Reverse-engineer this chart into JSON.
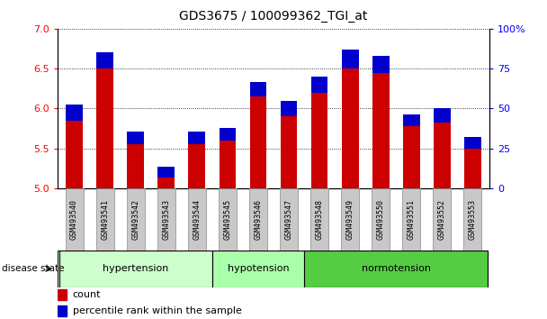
{
  "title": "GDS3675 / 100099362_TGI_at",
  "samples": [
    "GSM493540",
    "GSM493541",
    "GSM493542",
    "GSM493543",
    "GSM493544",
    "GSM493545",
    "GSM493546",
    "GSM493547",
    "GSM493548",
    "GSM493549",
    "GSM493550",
    "GSM493551",
    "GSM493552",
    "GSM493553"
  ],
  "red_values": [
    5.85,
    6.5,
    5.55,
    5.13,
    5.55,
    5.6,
    6.15,
    5.9,
    6.2,
    6.5,
    6.44,
    5.78,
    5.82,
    5.5
  ],
  "blue_values_pct": [
    10,
    10,
    8,
    7,
    8,
    8,
    9,
    10,
    10,
    12,
    11,
    7,
    9,
    7
  ],
  "ylim_left": [
    5.0,
    7.0
  ],
  "ylim_right": [
    0,
    100
  ],
  "yticks_left": [
    5.0,
    5.5,
    6.0,
    6.5,
    7.0
  ],
  "yticks_right": [
    0,
    25,
    50,
    75,
    100
  ],
  "ytick_labels_right": [
    "0",
    "25",
    "50",
    "75",
    "100%"
  ],
  "bar_bottom": 5.0,
  "groups": [
    {
      "label": "hypertension",
      "start": 0,
      "end": 4
    },
    {
      "label": "hypotension",
      "start": 5,
      "end": 7
    },
    {
      "label": "normotension",
      "start": 8,
      "end": 13
    }
  ],
  "group_colors": [
    "#ccffcc",
    "#aaffaa",
    "#55cc44"
  ],
  "red_color": "#cc0000",
  "blue_color": "#0000cc",
  "bar_width": 0.55,
  "bg_color": "#ffffff",
  "tick_label_bg": "#c8c8c8",
  "disease_state_label": "disease state",
  "legend_count": "count",
  "legend_percentile": "percentile rank within the sample"
}
